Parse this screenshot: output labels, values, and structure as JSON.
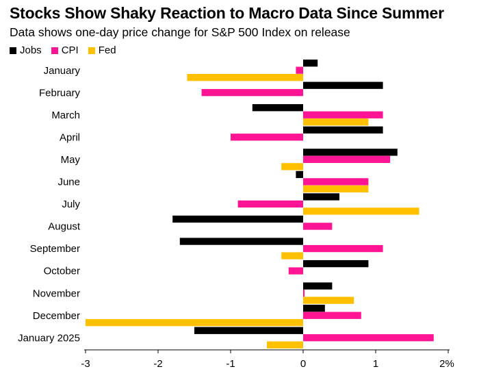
{
  "chart_data": {
    "type": "bar",
    "orientation": "horizontal",
    "title": "Stocks Show Shaky Reaction to Macro Data Since Summer",
    "subtitle": "Data shows one-day price change for S&P 500 Index on release",
    "xlabel": "",
    "ylabel": "",
    "unit_suffix": "%",
    "xlim": [
      -3,
      2
    ],
    "xticks": [
      -3,
      -2,
      -1,
      0,
      1,
      2
    ],
    "xtick_labels": [
      "-3",
      "-2",
      "-1",
      "0",
      "1",
      "2%"
    ],
    "legend_position": "top-left",
    "grid": false,
    "categories": [
      "January",
      "February",
      "March",
      "April",
      "May",
      "June",
      "July",
      "August",
      "September",
      "October",
      "November",
      "December",
      "January 2025"
    ],
    "series": [
      {
        "name": "Jobs",
        "color": "#000000",
        "values": [
          0.2,
          1.1,
          -0.7,
          1.1,
          1.3,
          -0.1,
          0.5,
          -1.8,
          -1.7,
          0.9,
          0.4,
          0.3,
          -1.5
        ]
      },
      {
        "name": "CPI",
        "color": "#ff1493",
        "values": [
          -0.1,
          -1.4,
          1.1,
          -1.0,
          1.2,
          0.9,
          -0.9,
          0.4,
          1.1,
          -0.2,
          0.02,
          0.8,
          1.8
        ]
      },
      {
        "name": "Fed",
        "color": "#ffc000",
        "values": [
          -1.6,
          null,
          0.9,
          null,
          -0.3,
          0.9,
          1.6,
          null,
          -0.3,
          null,
          0.7,
          -3.0,
          -0.5
        ]
      }
    ]
  }
}
